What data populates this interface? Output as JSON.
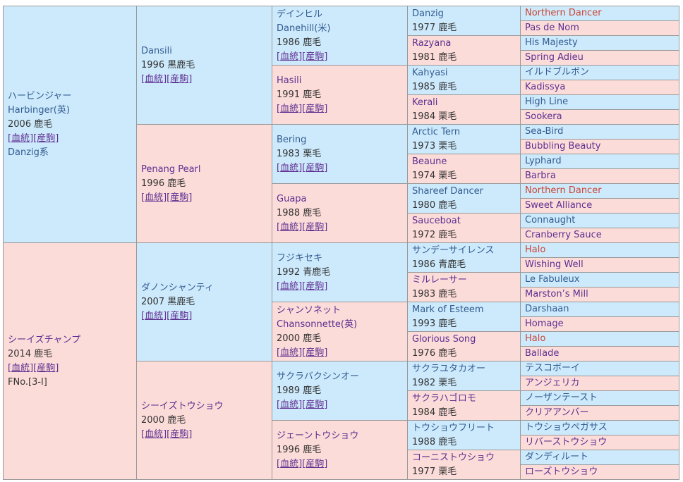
{
  "colors": {
    "page_background": "#ffffff",
    "border": "#999999",
    "bg_blue": "#cdeafc",
    "bg_pink": "#fcdcd8",
    "male_link": "#335c91",
    "female_link": "#5f2e91",
    "duplicate_link": "#cc4433",
    "plain_text": "#333333"
  },
  "link_labels": {
    "open": "[",
    "mid": "][",
    "close": "]",
    "pedigree": "血統",
    "offspring": "産駒"
  },
  "pedigree": {
    "generations": [
      {
        "cells": [
          {
            "name": "ハービンジャー",
            "name2": "Harbinger(英)",
            "info": "2006 鹿毛",
            "links": true,
            "extra": {
              "text": "Danzig系",
              "kind": "sire-line",
              "style": "male"
            },
            "bg": "blue",
            "color": "male"
          },
          {
            "name": "シーイズチャンプ",
            "info": "2014 鹿毛",
            "links": true,
            "extra": {
              "text": "FNo.[3-l]",
              "kind": "family-number",
              "style": "plain"
            },
            "bg": "pink",
            "color": "female"
          }
        ]
      },
      {
        "cells": [
          {
            "name": "Dansili",
            "info": "1996 黒鹿毛",
            "links": true,
            "bg": "blue",
            "color": "male"
          },
          {
            "name": "Penang Pearl",
            "info": "1996 鹿毛",
            "links": true,
            "bg": "pink",
            "color": "female"
          },
          {
            "name": "ダノンシャンティ",
            "info": "2007 黒鹿毛",
            "links": true,
            "bg": "blue",
            "color": "male"
          },
          {
            "name": "シーイズトウショウ",
            "info": "2000 鹿毛",
            "links": true,
            "bg": "pink",
            "color": "female"
          }
        ]
      },
      {
        "cells": [
          {
            "name": "デインヒル",
            "name2": "Danehill(米)",
            "info": "1986 鹿毛",
            "links": true,
            "bg": "blue",
            "color": "male"
          },
          {
            "name": "Hasili",
            "info": "1991 鹿毛",
            "links": true,
            "bg": "pink",
            "color": "female"
          },
          {
            "name": "Bering",
            "info": "1983 栗毛",
            "links": true,
            "bg": "blue",
            "color": "male"
          },
          {
            "name": "Guapa",
            "info": "1988 鹿毛",
            "links": true,
            "bg": "pink",
            "color": "female"
          },
          {
            "name": "フジキセキ",
            "info": "1992 青鹿毛",
            "links": true,
            "bg": "blue",
            "color": "male"
          },
          {
            "name": "シャンソネット",
            "name2": "Chansonnette(英)",
            "info": "2000 鹿毛",
            "links": true,
            "bg": "pink",
            "color": "female"
          },
          {
            "name": "サクラバクシンオー",
            "info": "1989 鹿毛",
            "links": true,
            "bg": "blue",
            "color": "male"
          },
          {
            "name": "ジェーントウショウ",
            "info": "1996 鹿毛",
            "links": true,
            "bg": "pink",
            "color": "female"
          }
        ]
      },
      {
        "cells": [
          {
            "name": "Danzig",
            "info": "1977 鹿毛",
            "bg": "blue",
            "color": "male"
          },
          {
            "name": "Razyana",
            "info": "1981 鹿毛",
            "bg": "pink",
            "color": "female"
          },
          {
            "name": "Kahyasi",
            "info": "1985 鹿毛",
            "bg": "blue",
            "color": "male"
          },
          {
            "name": "Kerali",
            "info": "1984 栗毛",
            "bg": "pink",
            "color": "female"
          },
          {
            "name": "Arctic Tern",
            "info": "1973 栗毛",
            "bg": "blue",
            "color": "male"
          },
          {
            "name": "Beaune",
            "info": "1974 栗毛",
            "bg": "pink",
            "color": "female"
          },
          {
            "name": "Shareef Dancer",
            "info": "1980 鹿毛",
            "bg": "blue",
            "color": "male"
          },
          {
            "name": "Sauceboat",
            "info": "1972 鹿毛",
            "bg": "pink",
            "color": "female"
          },
          {
            "name": "サンデーサイレンス",
            "info": "1986 青鹿毛",
            "bg": "blue",
            "color": "male"
          },
          {
            "name": "ミルレーサー",
            "info": "1983 鹿毛",
            "bg": "pink",
            "color": "female"
          },
          {
            "name": "Mark of Esteem",
            "info": "1993 鹿毛",
            "bg": "blue",
            "color": "male"
          },
          {
            "name": "Glorious Song",
            "info": "1976 鹿毛",
            "bg": "pink",
            "color": "female"
          },
          {
            "name": "サクラユタカオー",
            "info": "1982 栗毛",
            "bg": "blue",
            "color": "male"
          },
          {
            "name": "サクラハゴロモ",
            "info": "1984 鹿毛",
            "bg": "pink",
            "color": "female"
          },
          {
            "name": "トウショウフリート",
            "info": "1988 鹿毛",
            "bg": "blue",
            "color": "male"
          },
          {
            "name": "コーニストウショウ",
            "info": "1977 栗毛",
            "bg": "pink",
            "color": "female"
          }
        ]
      },
      {
        "cells": [
          {
            "name": "Northern Dancer",
            "bg": "blue",
            "color": "dup"
          },
          {
            "name": "Pas de Nom",
            "bg": "pink",
            "color": "female"
          },
          {
            "name": "His Majesty",
            "bg": "blue",
            "color": "male"
          },
          {
            "name": "Spring Adieu",
            "bg": "pink",
            "color": "female"
          },
          {
            "name": "イルドブルボン",
            "bg": "blue",
            "color": "male"
          },
          {
            "name": "Kadissya",
            "bg": "pink",
            "color": "female"
          },
          {
            "name": "High Line",
            "bg": "blue",
            "color": "male"
          },
          {
            "name": "Sookera",
            "bg": "pink",
            "color": "female"
          },
          {
            "name": "Sea-Bird",
            "bg": "blue",
            "color": "male"
          },
          {
            "name": "Bubbling Beauty",
            "bg": "pink",
            "color": "female"
          },
          {
            "name": "Lyphard",
            "bg": "blue",
            "color": "male"
          },
          {
            "name": "Barbra",
            "bg": "pink",
            "color": "female"
          },
          {
            "name": "Northern Dancer",
            "bg": "blue",
            "color": "dup"
          },
          {
            "name": "Sweet Alliance",
            "bg": "pink",
            "color": "female"
          },
          {
            "name": "Connaught",
            "bg": "blue",
            "color": "male"
          },
          {
            "name": "Cranberry Sauce",
            "bg": "pink",
            "color": "female"
          },
          {
            "name": "Halo",
            "bg": "blue",
            "color": "dup"
          },
          {
            "name": "Wishing Well",
            "bg": "pink",
            "color": "female"
          },
          {
            "name": "Le Fabuleux",
            "bg": "blue",
            "color": "male"
          },
          {
            "name": "Marston’s Mill",
            "bg": "pink",
            "color": "female"
          },
          {
            "name": "Darshaan",
            "bg": "blue",
            "color": "male"
          },
          {
            "name": "Homage",
            "bg": "pink",
            "color": "female"
          },
          {
            "name": "Halo",
            "bg": "blue",
            "color": "dup"
          },
          {
            "name": "Ballade",
            "bg": "pink",
            "color": "female"
          },
          {
            "name": "テスコボーイ",
            "bg": "blue",
            "color": "male"
          },
          {
            "name": "アンジェリカ",
            "bg": "pink",
            "color": "female"
          },
          {
            "name": "ノーザンテースト",
            "bg": "blue",
            "color": "male"
          },
          {
            "name": "クリアアンバー",
            "bg": "pink",
            "color": "female"
          },
          {
            "name": "トウショウペガサス",
            "bg": "blue",
            "color": "male"
          },
          {
            "name": "リバーストウショウ",
            "bg": "pink",
            "color": "female"
          },
          {
            "name": "ダンディルート",
            "bg": "blue",
            "color": "male"
          },
          {
            "name": "ローズトウショウ",
            "bg": "pink",
            "color": "female"
          }
        ]
      }
    ]
  }
}
